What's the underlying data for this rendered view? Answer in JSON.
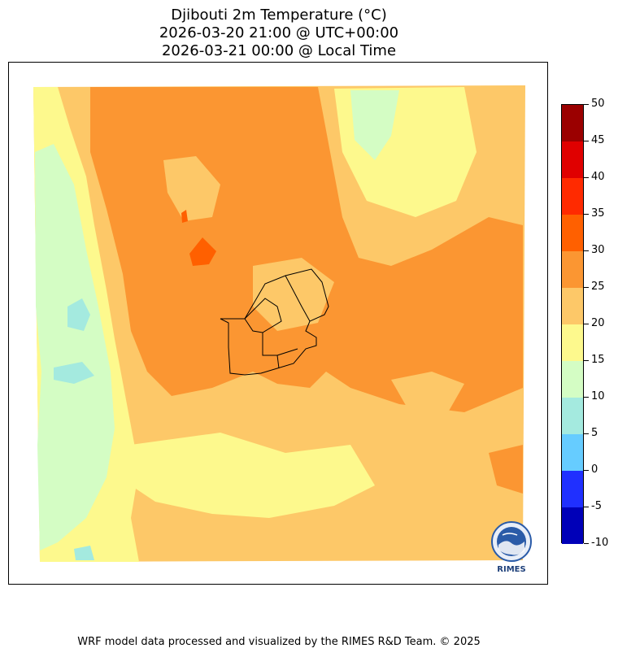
{
  "title": {
    "line1": "Djibouti 2m Temperature (°C)",
    "line2": "2026-03-20 21:00 @ UTC+00:00",
    "line3": "2026-03-21 00:00 @ Local Time"
  },
  "colorbar": {
    "labels": [
      "50",
      "45",
      "40",
      "35",
      "30",
      "25",
      "20",
      "15",
      "10",
      "5",
      "0",
      "-5",
      "-10"
    ],
    "colors": [
      "#9b0000",
      "#e00000",
      "#ff2a00",
      "#ff6000",
      "#fb9632",
      "#fdc868",
      "#fdf98d",
      "#d4fdc4",
      "#a4eadf",
      "#66ccff",
      "#2030ff",
      "#0000b8"
    ]
  },
  "logo": {
    "text": "RIMES",
    "icon": "rimes-globe-icon"
  },
  "credit": "WRF model data processed and visualized by the RIMES R&D Team. © 2025"
}
